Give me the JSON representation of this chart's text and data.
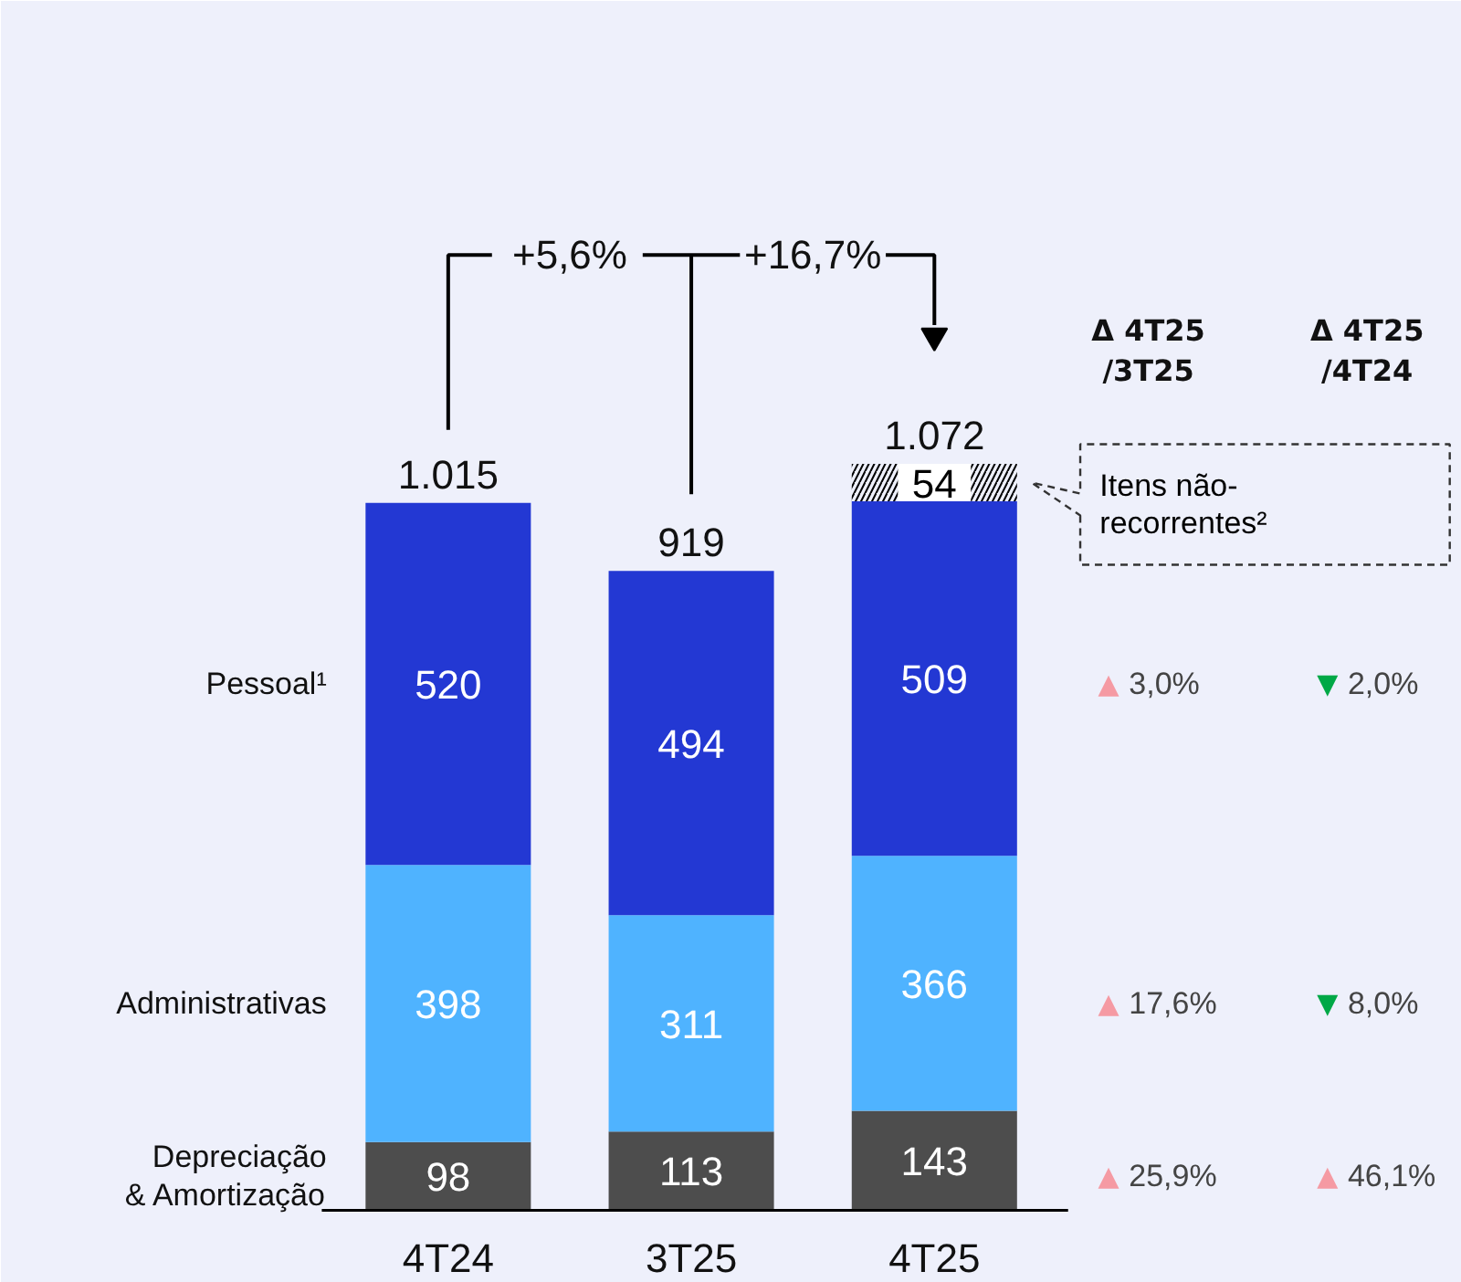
{
  "chart_data": {
    "type": "bar",
    "stacked": true,
    "data_labels": true,
    "categories": [
      "4T24",
      "3T25",
      "4T25"
    ],
    "series": [
      {
        "name": "Depreciação\n& Amortização",
        "color": "#4d4d4d",
        "values": [
          98,
          113,
          143
        ]
      },
      {
        "name": "Administrativas",
        "color": "#4fb3ff",
        "values": [
          398,
          311,
          366
        ]
      },
      {
        "name": "Pessoal¹",
        "color": "#2338d3",
        "values": [
          520,
          494,
          509
        ]
      },
      {
        "name": "Itens não-\nrecorrentes²",
        "color": "#000000",
        "values": [
          null,
          null,
          54
        ]
      }
    ],
    "totals": [
      "1.015",
      "919",
      "1.072"
    ],
    "annotations": [
      "+5,6%",
      "+16,7%",
      "Δ 4T25\n/3T25",
      "Δ 4T25\n/4T24",
      "▲ 3,0%",
      "▼ 2,0%",
      "▲ 17,6%",
      "▼ 8,0%",
      "▲ 25,9%",
      "▲ 46,1%"
    ]
  }
}
